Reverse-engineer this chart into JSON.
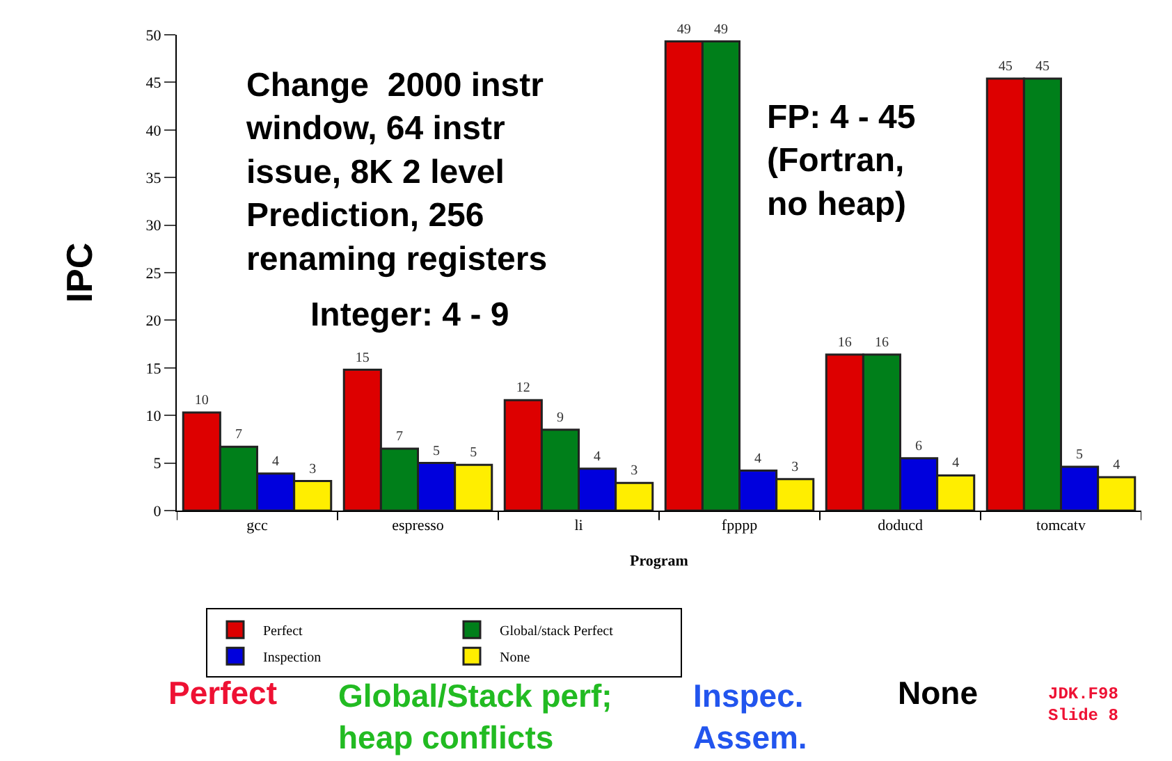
{
  "chart_data": {
    "type": "bar",
    "xlabel": "Program",
    "ylabel": "IPC",
    "categories": [
      "gcc",
      "espresso",
      "li",
      "fpppp",
      "doducd",
      "tomcatv"
    ],
    "series": [
      {
        "name": "Perfect",
        "color": "#dd0000",
        "values": [
          10.3,
          14.8,
          11.6,
          49.3,
          16.4,
          45.4
        ],
        "value_labels": [
          "10",
          "15",
          "12",
          "49",
          "16",
          "45"
        ]
      },
      {
        "name": "Global/stack Perfect",
        "color": "#007f1a",
        "values": [
          6.7,
          6.5,
          8.5,
          49.3,
          16.4,
          45.4
        ],
        "value_labels": [
          "7",
          "7",
          "9",
          "49",
          "16",
          "45"
        ]
      },
      {
        "name": "Inspection",
        "color": "#0000dd",
        "values": [
          3.9,
          5.0,
          4.4,
          4.2,
          5.5,
          4.6
        ],
        "value_labels": [
          "4",
          "5",
          "4",
          "4",
          "6",
          "5"
        ]
      },
      {
        "name": "None",
        "color": "#ffee00",
        "values": [
          3.1,
          4.8,
          2.9,
          3.3,
          3.7,
          3.5
        ],
        "value_labels": [
          "3",
          "5",
          "3",
          "3",
          "4",
          "4"
        ]
      }
    ],
    "ylim": [
      0,
      50
    ],
    "yticks": [
      0,
      5,
      10,
      15,
      20,
      25,
      30,
      35,
      40,
      45,
      50
    ],
    "legend": "bottom",
    "annotations": [
      "Change  2000 instr\nwindow, 64 instr\nissue, 8K 2 level\nPrediction, 256\nrenaming registers",
      "Integer: 4 - 9",
      "FP: 4 - 45\n(Fortran,\nno heap)",
      "Perfect",
      "Global/Stack perf;\nheap conflicts",
      "Inspec.\nAssem.",
      "None",
      "JDK.F98\nSlide 8"
    ]
  }
}
